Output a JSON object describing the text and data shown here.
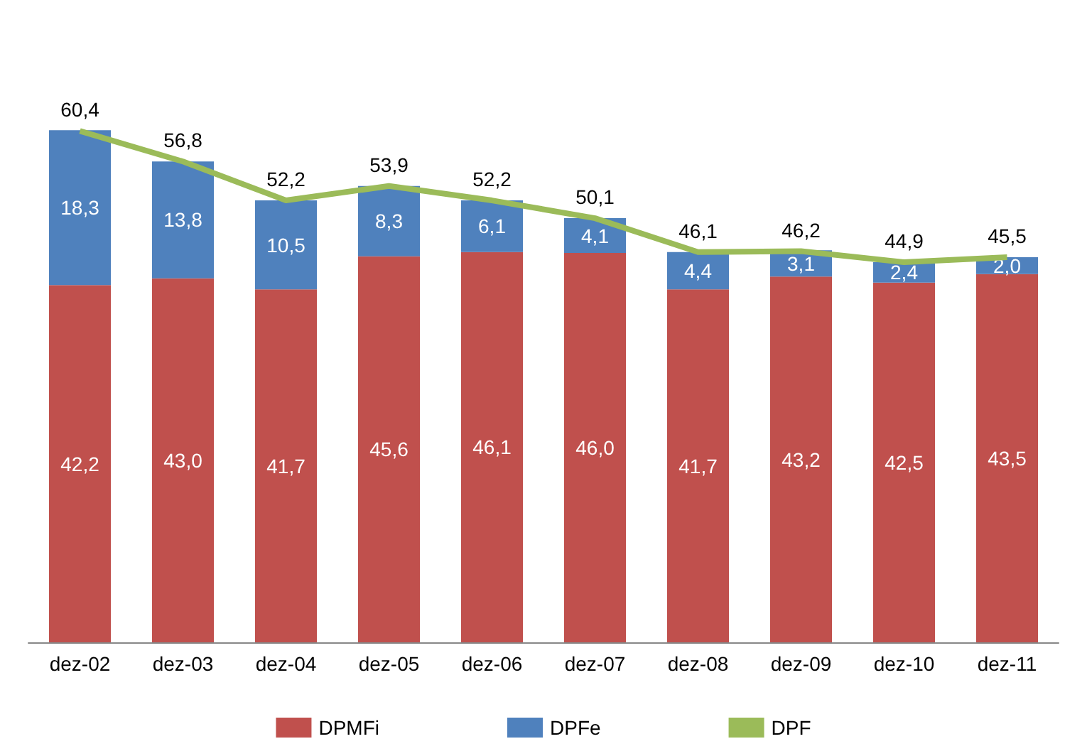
{
  "chart_data": {
    "type": "bar",
    "stacked": true,
    "legend": "bottom",
    "marker": "none",
    "categories": [
      "dez-02",
      "dez-03",
      "dez-04",
      "dez-05",
      "dez-06",
      "dez-07",
      "dez-08",
      "dez-09",
      "dez-10",
      "dez-11"
    ],
    "series": [
      {
        "name": "DPMFi",
        "color": "#c0504d",
        "values": [
          42.2,
          43.0,
          41.7,
          45.6,
          46.1,
          46.0,
          41.7,
          43.2,
          42.5,
          43.5
        ],
        "value_labels": [
          "42,2",
          "43,0",
          "41,7",
          "45,6",
          "46,1",
          "46,0",
          "41,7",
          "43,2",
          "42,5",
          "43,5"
        ]
      },
      {
        "name": "DPFe",
        "color": "#4f81bd",
        "values": [
          18.3,
          13.8,
          10.5,
          8.3,
          6.1,
          4.1,
          4.4,
          3.1,
          2.4,
          2.0
        ],
        "value_labels": [
          "18,3",
          "13,8",
          "10,5",
          "8,3",
          "6,1",
          "4,1",
          "4,4",
          "3,1",
          "2,4",
          "2,0"
        ]
      },
      {
        "name": "DPF",
        "type": "line",
        "color": "#9bbb59",
        "values": [
          60.4,
          56.8,
          52.2,
          53.9,
          52.2,
          50.1,
          46.1,
          46.2,
          44.9,
          45.5
        ],
        "value_labels": [
          "60,4",
          "56,8",
          "52,2",
          "53,9",
          "52,2",
          "50,1",
          "46,1",
          "46,2",
          "44,9",
          "45,5"
        ]
      }
    ]
  }
}
